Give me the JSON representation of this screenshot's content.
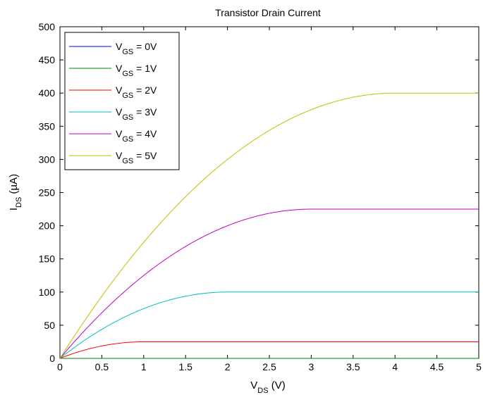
{
  "chart_data": {
    "type": "line",
    "title": "Transistor Drain Current",
    "xlabel": {
      "main": "V",
      "sub": "DS",
      "rest": " (V)"
    },
    "ylabel": {
      "main": "I",
      "sub": "DS",
      "rest": " (µA)"
    },
    "xlim": [
      0,
      5
    ],
    "ylim": [
      0,
      500
    ],
    "xticks": [
      0,
      0.5,
      1,
      1.5,
      2,
      2.5,
      3,
      3.5,
      4,
      4.5,
      5
    ],
    "yticks": [
      0,
      50,
      100,
      150,
      200,
      250,
      300,
      350,
      400,
      450,
      500
    ],
    "x_tick_labels": [
      "0",
      "0.5",
      "1",
      "1.5",
      "2",
      "2.5",
      "3",
      "3.5",
      "4",
      "4.5",
      "5"
    ],
    "y_tick_labels": [
      "0",
      "50",
      "100",
      "150",
      "200",
      "250",
      "300",
      "350",
      "400",
      "450",
      "500"
    ],
    "grid": false,
    "legend_position": "top-left",
    "threshold_voltage": 1,
    "k": 25,
    "series": [
      {
        "name": {
          "main": "V",
          "sub": "GS",
          "rest": " = 0V"
        },
        "vgs": 0,
        "color": "#0000ff",
        "saturation_current": 0
      },
      {
        "name": {
          "main": "V",
          "sub": "GS",
          "rest": " = 1V"
        },
        "vgs": 1,
        "color": "#008000",
        "saturation_current": 0
      },
      {
        "name": {
          "main": "V",
          "sub": "GS",
          "rest": " = 2V"
        },
        "vgs": 2,
        "color": "#ff0000",
        "saturation_current": 25
      },
      {
        "name": {
          "main": "V",
          "sub": "GS",
          "rest": " = 3V"
        },
        "vgs": 3,
        "color": "#00bfbf",
        "saturation_current": 100
      },
      {
        "name": {
          "main": "V",
          "sub": "GS",
          "rest": " = 4V"
        },
        "vgs": 4,
        "color": "#bf00bf",
        "saturation_current": 225
      },
      {
        "name": {
          "main": "V",
          "sub": "GS",
          "rest": " = 5V"
        },
        "vgs": 5,
        "color": "#bfbf00",
        "saturation_current": 400
      }
    ]
  }
}
